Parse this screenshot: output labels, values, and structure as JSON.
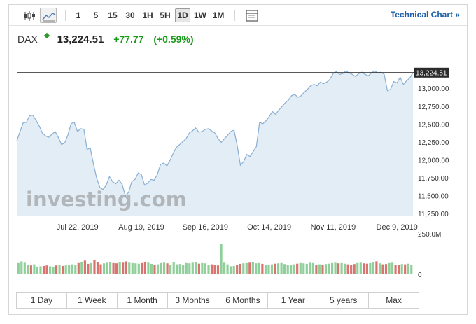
{
  "toolbar": {
    "intervals": [
      "1",
      "5",
      "15",
      "30",
      "1H",
      "5H",
      "1D",
      "1W",
      "1M"
    ],
    "active_interval": "1D",
    "technical_link": "Technical Chart »"
  },
  "quote": {
    "symbol": "DAX",
    "price": "13,224.51",
    "change": "+77.77",
    "change_pct": "(+0.59%)"
  },
  "colors": {
    "line": "#89aed3",
    "fill": "#e3edf6",
    "up_volume": "#8fcf9a",
    "down_volume": "#d9736f",
    "positive_text": "#1a9a1a",
    "link": "#1c5ea8"
  },
  "watermark": "investing.com",
  "ranges": [
    "1 Day",
    "1 Week",
    "1 Month",
    "3 Months",
    "6 Months",
    "1 Year",
    "5 years",
    "Max"
  ],
  "chart_data": {
    "type": "area",
    "y_ticks": [
      "13,000.00",
      "12,750.00",
      "12,500.00",
      "12,250.00",
      "12,000.00",
      "11,750.00",
      "11,500.00",
      "11,250.00"
    ],
    "y_tick_values": [
      13000,
      12750,
      12500,
      12250,
      12000,
      11750,
      11500,
      11250
    ],
    "ylim": [
      11225,
      13340
    ],
    "x_ticks": [
      "Jul 22, 2019",
      "Aug 19, 2019",
      "Sep 16, 2019",
      "Oct 14, 2019",
      "Nov 11, 2019",
      "Dec 9, 2019"
    ],
    "x_tick_index": [
      19,
      39,
      59,
      79,
      99,
      119
    ],
    "last_price_label": "13,224.51",
    "last_price": 13224.51,
    "series": [
      {
        "values": [
          12270,
          12400,
          12520,
          12530,
          12620,
          12630,
          12560,
          12480,
          12380,
          12340,
          12320,
          12360,
          12400,
          12320,
          12220,
          12240,
          12350,
          12510,
          12530,
          12400,
          12440,
          12430,
          12150,
          12170,
          11950,
          11750,
          11620,
          11590,
          11650,
          11770,
          11700,
          11670,
          11720,
          11660,
          11500,
          11550,
          11700,
          11730,
          11820,
          11800,
          11650,
          11680,
          11730,
          11720,
          11800,
          11940,
          11960,
          11920,
          12000,
          12100,
          12180,
          12220,
          12260,
          12300,
          12380,
          12410,
          12450,
          12390,
          12400,
          12430,
          12440,
          12410,
          12380,
          12300,
          12250,
          12300,
          12350,
          12400,
          12420,
          12200,
          11930,
          11980,
          12080,
          12050,
          12120,
          12190,
          12530,
          12510,
          12550,
          12610,
          12680,
          12640,
          12700,
          12750,
          12800,
          12840,
          12900,
          12920,
          12880,
          12900,
          12950,
          12990,
          13040,
          13060,
          13040,
          13090,
          13070,
          13090,
          13130,
          13210,
          13240,
          13200,
          13210,
          13250,
          13220,
          13200,
          13170,
          13210,
          13230,
          13200,
          13180,
          13220,
          13250,
          13220,
          13230,
          13200,
          12970,
          12990,
          13100,
          13080,
          13160,
          13060,
          13110,
          13150,
          13224.51
        ]
      }
    ],
    "volume": {
      "label": "250.0M",
      "zero_label": "0",
      "max": 250,
      "values": [
        70,
        80,
        72,
        60,
        55,
        62,
        48,
        50,
        52,
        55,
        50,
        48,
        55,
        58,
        52,
        55,
        60,
        62,
        58,
        70,
        78,
        85,
        65,
        70,
        90,
        75,
        62,
        68,
        72,
        74,
        70,
        68,
        74,
        72,
        80,
        72,
        70,
        68,
        66,
        70,
        75,
        72,
        65,
        60,
        62,
        70,
        72,
        68,
        60,
        75,
        62,
        64,
        60,
        70,
        68,
        72,
        74,
        66,
        70,
        68,
        58,
        62,
        60,
        55,
        188,
        72,
        62,
        50,
        52,
        60,
        65,
        68,
        70,
        72,
        74,
        68,
        70,
        65,
        60,
        58,
        62,
        66,
        68,
        70,
        64,
        60,
        58,
        62,
        66,
        70,
        68,
        65,
        72,
        70,
        60,
        62,
        58,
        64,
        66,
        70,
        72,
        68,
        70,
        66,
        62,
        60,
        64,
        70,
        72,
        68,
        66,
        70,
        74,
        80,
        68,
        62,
        64,
        70,
        72,
        60,
        56,
        64,
        62,
        66,
        60
      ],
      "up": [
        1,
        1,
        1,
        1,
        0,
        1,
        1,
        1,
        0,
        0,
        1,
        1,
        0,
        1,
        0,
        1,
        1,
        1,
        1,
        0,
        1,
        0,
        0,
        1,
        0,
        0,
        0,
        1,
        1,
        1,
        0,
        0,
        1,
        0,
        0,
        1,
        1,
        1,
        1,
        0,
        0,
        1,
        1,
        0,
        1,
        1,
        1,
        0,
        1,
        1,
        1,
        1,
        1,
        1,
        1,
        1,
        1,
        0,
        1,
        1,
        1,
        0,
        0,
        0,
        1,
        1,
        1,
        1,
        1,
        0,
        0,
        1,
        1,
        0,
        1,
        1,
        1,
        0,
        1,
        1,
        1,
        0,
        1,
        1,
        1,
        1,
        1,
        1,
        0,
        1,
        1,
        1,
        1,
        1,
        0,
        1,
        0,
        1,
        1,
        1,
        1,
        0,
        1,
        1,
        0,
        0,
        0,
        1,
        1,
        0,
        0,
        1,
        1,
        0,
        1,
        0,
        0,
        1,
        1,
        0,
        0,
        1,
        0,
        1,
        1
      ]
    }
  }
}
